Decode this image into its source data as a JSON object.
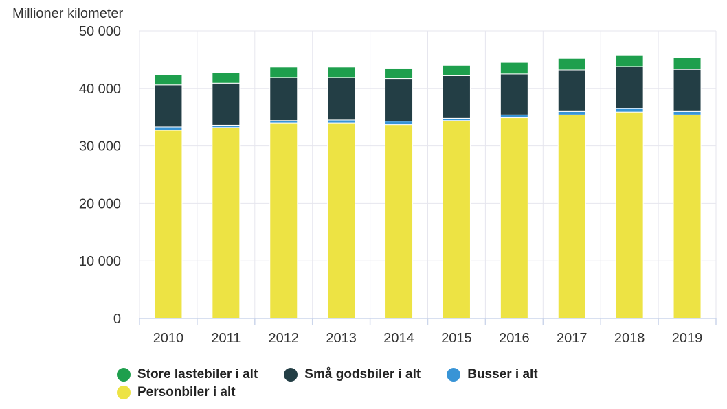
{
  "chart_data": {
    "type": "bar",
    "stacked": true,
    "ylabel": "Millioner kilometer",
    "ylim": [
      0,
      50000
    ],
    "yticks": [
      0,
      10000,
      20000,
      30000,
      40000,
      50000
    ],
    "ytick_labels": [
      "0",
      "10 000",
      "20 000",
      "30 000",
      "40 000",
      "50 000"
    ],
    "grid": true,
    "legend_position": "bottom-left",
    "categories": [
      "2010",
      "2011",
      "2012",
      "2013",
      "2014",
      "2015",
      "2016",
      "2017",
      "2018",
      "2019"
    ],
    "series": [
      {
        "name": "Personbiler i alt",
        "color": "#ede344",
        "values": [
          32700,
          33200,
          34000,
          34000,
          33700,
          34400,
          34900,
          35400,
          35900,
          35400
        ]
      },
      {
        "name": "Busser i alt",
        "color": "#3894d6",
        "values": [
          600,
          400,
          400,
          500,
          600,
          400,
          500,
          600,
          600,
          600
        ]
      },
      {
        "name": "Små godsbiler i alt",
        "color": "#233e45",
        "values": [
          7300,
          7300,
          7500,
          7400,
          7400,
          7400,
          7100,
          7200,
          7300,
          7300
        ]
      },
      {
        "name": "Store lastebiler i alt",
        "color": "#1e9f4d",
        "values": [
          1800,
          1800,
          1800,
          1800,
          1800,
          1800,
          2000,
          2000,
          2000,
          2100
        ]
      }
    ],
    "legend_order": [
      "Store lastebiler i alt",
      "Små godsbiler i alt",
      "Busser i alt",
      "Personbiler i alt"
    ]
  }
}
